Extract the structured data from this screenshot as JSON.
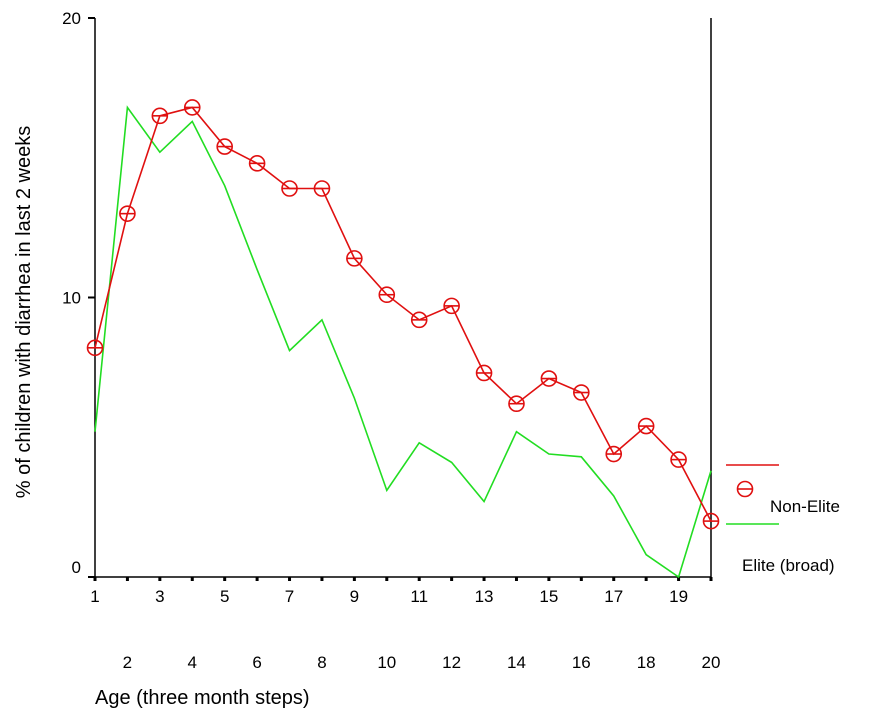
{
  "chart_data": {
    "type": "line",
    "xlabel": "Age (three month steps)",
    "ylabel": "% of children with diarrhea in last 2 weeks",
    "x": [
      1,
      2,
      3,
      4,
      5,
      6,
      7,
      8,
      9,
      10,
      11,
      12,
      13,
      14,
      15,
      16,
      17,
      18,
      19,
      20
    ],
    "xlim": [
      1,
      20
    ],
    "ylim": [
      0,
      20
    ],
    "yticks": [
      0,
      10,
      20
    ],
    "grid": false,
    "legend_position": "right",
    "series": [
      {
        "name": "Non-Elite",
        "color": "#e01010",
        "marker": "circle",
        "values": [
          8.2,
          13.0,
          16.5,
          16.8,
          15.4,
          14.8,
          13.9,
          13.9,
          11.4,
          10.1,
          9.2,
          9.7,
          7.3,
          6.2,
          7.1,
          6.6,
          4.4,
          5.4,
          4.2,
          2.0
        ]
      },
      {
        "name": "Elite (broad)",
        "color": "#22dd22",
        "marker": "none",
        "values": [
          5.2,
          16.8,
          15.2,
          16.3,
          14.0,
          11.0,
          8.1,
          9.2,
          6.4,
          3.1,
          4.8,
          4.1,
          2.7,
          5.2,
          4.4,
          4.3,
          2.9,
          0.8,
          0.0,
          3.8
        ]
      }
    ]
  }
}
